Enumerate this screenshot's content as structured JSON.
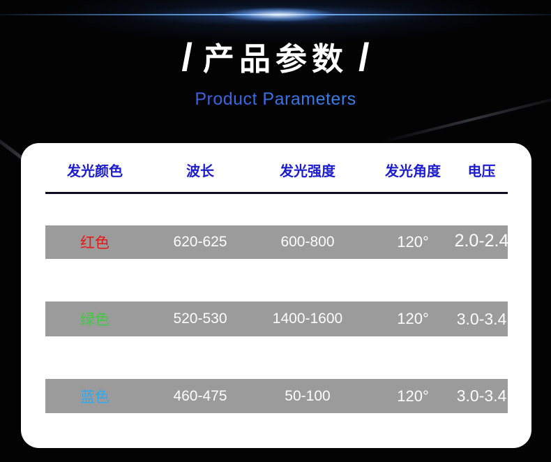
{
  "title": {
    "slash_left": "/",
    "zh": "产品参数",
    "slash_right": "/",
    "en": "Product Parameters"
  },
  "table": {
    "headers": [
      "发光颜色",
      "波长",
      "发光强度",
      "发光角度",
      "电压"
    ],
    "rows": [
      {
        "label": "红色",
        "label_color": "#e81717",
        "wavelength": "620-625",
        "intensity": "600-800",
        "angle": "120°",
        "voltage": "2.0-2.4"
      },
      {
        "label": "绿色",
        "label_color": "#3ecb41",
        "wavelength": "520-530",
        "intensity": "1400-1600",
        "angle": "120°",
        "voltage": "3.0-3.4"
      },
      {
        "label": "蓝色",
        "label_color": "#2fa9ef",
        "wavelength": "460-475",
        "intensity": "50-100",
        "angle": "120°",
        "voltage": "3.0-3.4"
      }
    ]
  },
  "colors": {
    "header_text": "#1c1ccd",
    "row_bar": "#9b9b9b",
    "card_bg": "#ffffff",
    "divider": "#0c0c24",
    "subtitle_from": "#4343d8",
    "subtitle_to": "#2f9ff2",
    "flare": "#7ec2ff"
  }
}
